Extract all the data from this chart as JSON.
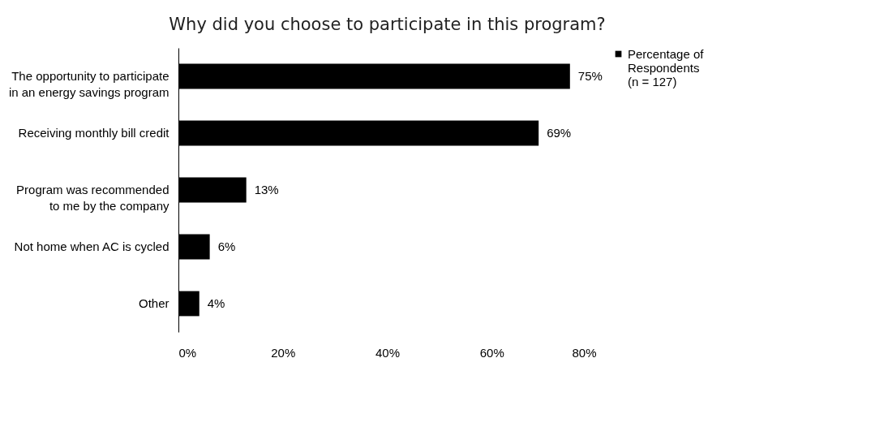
{
  "chart_data": {
    "type": "bar",
    "orientation": "horizontal",
    "title": "Why did you choose to participate in this program?",
    "categories": [
      "The opportunity to participate\nin an energy savings program",
      "Receiving monthly bill credit",
      "Program was recommended\nto me by the company",
      "Not home when AC is cycled",
      "Other"
    ],
    "series": [
      {
        "name": "Percentage of\nRespondents\n(n = 127)",
        "color": "#000000",
        "values": [
          75,
          69,
          13,
          6,
          4
        ]
      }
    ],
    "value_labels": [
      "75%",
      "69%",
      "13%",
      "6%",
      "4%"
    ],
    "xlim": [
      0,
      80
    ],
    "xticks": [
      {
        "value": 0,
        "label": "0%"
      },
      {
        "value": 20,
        "label": "20%"
      },
      {
        "value": 40,
        "label": "40%"
      },
      {
        "value": 60,
        "label": "60%"
      },
      {
        "value": 80,
        "label": "80%"
      }
    ],
    "grid": false,
    "legend": "right"
  }
}
